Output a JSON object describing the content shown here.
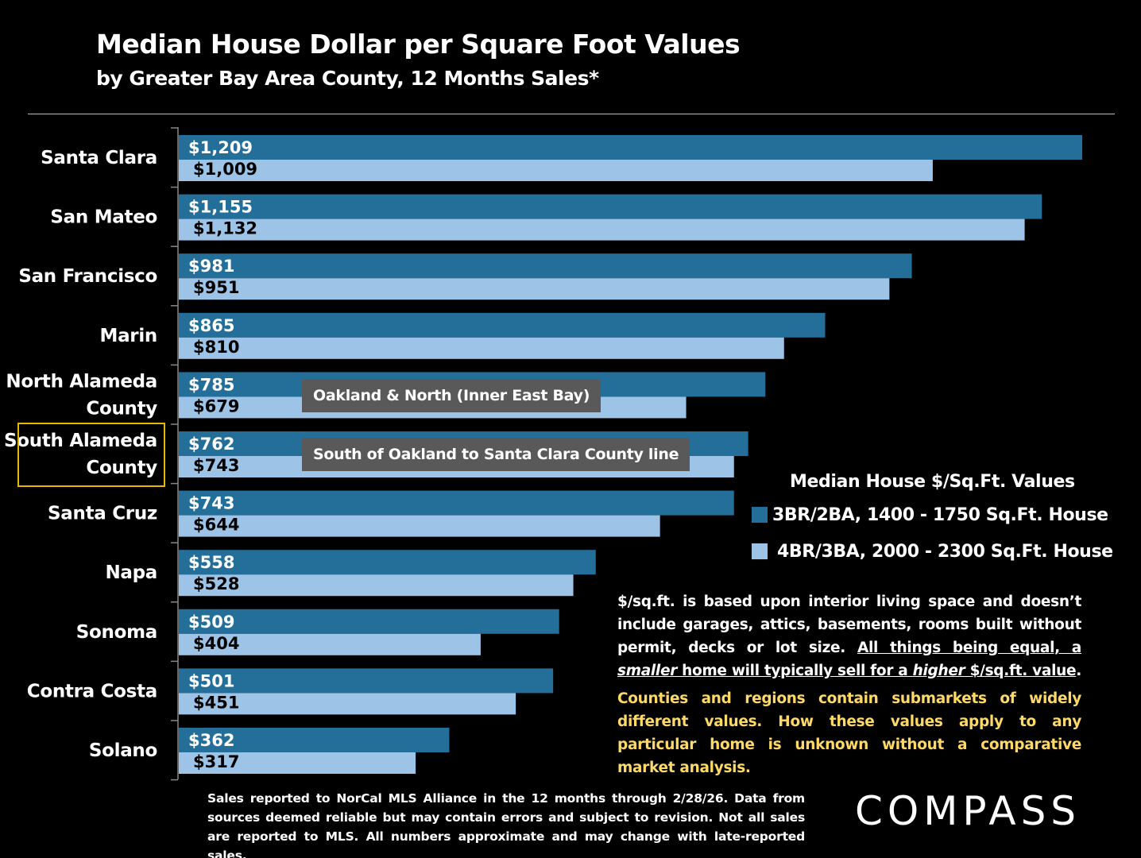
{
  "title": "Median House Dollar per Square Foot Values",
  "subtitle": "by Greater Bay Area County, 12 Months Sales*",
  "chart_data": {
    "type": "bar",
    "orientation": "horizontal",
    "categories": [
      "Santa Clara",
      "San Mateo",
      "San Francisco",
      "Marin",
      "North Alameda County",
      "South Alameda County",
      "Santa Cruz",
      "Napa",
      "Sonoma",
      "Contra Costa",
      "Solano"
    ],
    "category_lines": [
      [
        "Santa Clara"
      ],
      [
        "San Mateo"
      ],
      [
        "San Francisco"
      ],
      [
        "Marin"
      ],
      [
        "North Alameda",
        "County"
      ],
      [
        "South Alameda",
        "County"
      ],
      [
        "Santa Cruz"
      ],
      [
        "Napa"
      ],
      [
        "Sonoma"
      ],
      [
        "Contra Costa"
      ],
      [
        "Solano"
      ]
    ],
    "series": [
      {
        "name": "3BR/2BA, 1400 - 1750 Sq.Ft. House",
        "color": "#236f99",
        "values": [
          1209,
          1155,
          981,
          865,
          785,
          762,
          743,
          558,
          509,
          501,
          362
        ],
        "labels": [
          "$1,209",
          "$1,155",
          "$981",
          "$865",
          "$785",
          "$762",
          "$743",
          "$558",
          "$509",
          "$501",
          "$362"
        ]
      },
      {
        "name": "4BR/3BA, 2000 - 2300 Sq.Ft. House",
        "color": "#9dc3e6",
        "values": [
          1009,
          1132,
          951,
          810,
          679,
          743,
          644,
          528,
          404,
          451,
          317
        ],
        "labels": [
          "$1,009",
          "$1,132",
          "$951",
          "$810",
          "$679",
          "$743",
          "$644",
          "$528",
          "$404",
          "$451",
          "$317"
        ]
      }
    ],
    "legend_title": "Median House $/Sq.Ft. Values",
    "legend_position": "right",
    "highlighted_category": "South Alameda County",
    "highlight_color": "#e6b800",
    "grid": false
  },
  "callouts": [
    "Oakland & North (Inner East Bay)",
    "South of Oakland to Santa Clara County line"
  ],
  "note": {
    "text1": "$/sq.ft. is based upon interior living space and doesn’t include garages, attics, basements, rooms built without permit, decks or lot size. ",
    "u1": "All things being equal, a ",
    "i1": "smaller",
    "u2": " home will typically sell for a ",
    "i2": "higher",
    "u3": " $/sq.ft. value",
    "end": ".",
    "caveat": "Counties and regions contain submarkets of widely different values. How these values apply to any particular home is unknown without a comparative market analysis.",
    "caveat_color": "#ffd966"
  },
  "footnote": "Sales reported to NorCal MLS Alliance in the 12 months through 2/28/26. Data from sources deemed reliable but may contain errors and subject to revision. Not all sales are reported to MLS. All numbers approximate and may change with late-reported sales.",
  "logo": "COMPASS"
}
